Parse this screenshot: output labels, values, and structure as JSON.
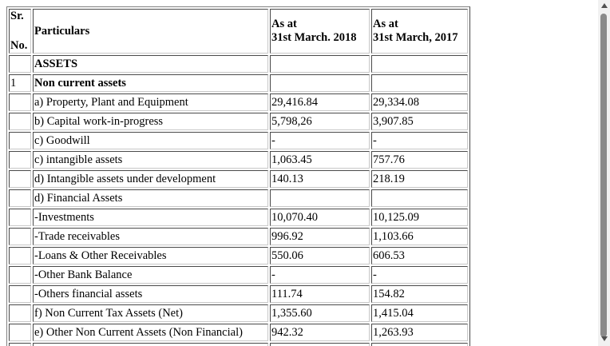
{
  "table": {
    "header": {
      "sr_line1": "Sr.",
      "sr_line2": "No.",
      "particulars": "Particulars",
      "col2018_line1": "As at",
      "col2018_line2": "31st March. 2018",
      "col2017_line1": "As at",
      "col2017_line2": "31st March, 2017"
    },
    "rows": [
      {
        "sr": "",
        "label": "ASSETS",
        "v2018": "",
        "v2017": ""
      },
      {
        "sr": "1",
        "label": "Non current assets",
        "v2018": "",
        "v2017": ""
      },
      {
        "sr": "",
        "label": "a) Property, Plant and Equipment",
        "v2018": "29,416.84",
        "v2017": "29,334.08"
      },
      {
        "sr": "",
        "label": "b) Capital work-in-progress",
        "v2018": "5,798,26",
        "v2017": "3,907.85"
      },
      {
        "sr": "",
        "label": "c) Goodwill",
        "v2018": "-",
        "v2017": "-"
      },
      {
        "sr": "",
        "label": "c) intangible assets",
        "v2018": "1,063.45",
        "v2017": "757.76"
      },
      {
        "sr": "",
        "label": "d) Intangible assets under development",
        "v2018": "140.13",
        "v2017": "218.19"
      },
      {
        "sr": "",
        "label": "d) Financial Assets",
        "v2018": "",
        "v2017": ""
      },
      {
        "sr": "",
        "label": "-Investments",
        "v2018": "10,070.40",
        "v2017": "10,125.09"
      },
      {
        "sr": "",
        "label": "-Trade receivables",
        "v2018": "996.92",
        "v2017": "1,103.66"
      },
      {
        "sr": "",
        "label": "-Loans & Other Receivables",
        "v2018": "550.06",
        "v2017": "606.53"
      },
      {
        "sr": "",
        "label": "-Other Bank Balance",
        "v2018": "-",
        "v2017": "-"
      },
      {
        "sr": "",
        "label": "-Others financial assets",
        "v2018": "111.74",
        "v2017": "154.82"
      },
      {
        "sr": "",
        "label": "f) Non Current Tax Assets (Net)",
        "v2018": "1,355.60",
        "v2017": "1,415.04"
      },
      {
        "sr": "",
        "label": "e) Other Non Current Assets (Non Financial)",
        "v2018": "942.32",
        "v2017": "1,263.93"
      },
      {
        "sr": "",
        "label": "",
        "v2018": "",
        "v2017": ""
      }
    ]
  },
  "scrollbar": {
    "up_icon": "arrow-up-icon",
    "down_icon": "arrow-down-icon",
    "scroll_position": 0
  }
}
